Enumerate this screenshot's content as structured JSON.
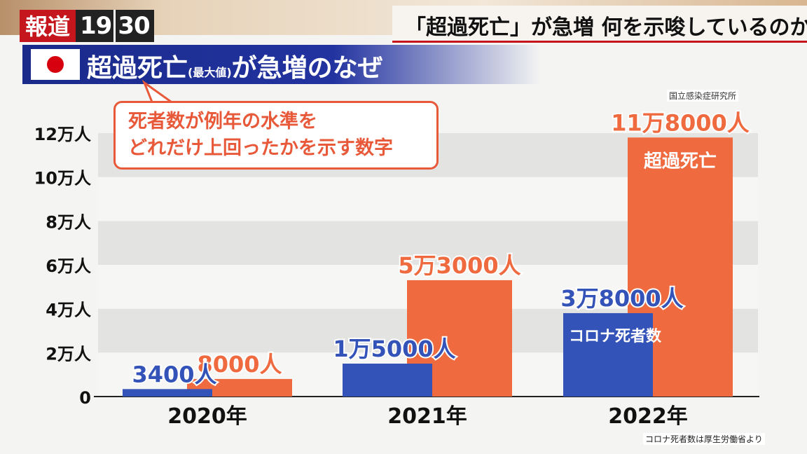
{
  "header": {
    "logo_text": "報道",
    "logo_num_a": "19",
    "logo_num_b": "30",
    "headline": "「超過死亡」が急増  何を示唆しているのか"
  },
  "title": {
    "main": "超過死亡",
    "small": "(最大値)",
    "rest": "が急増のなぜ"
  },
  "callout": {
    "line1": "死者数が例年の水準を",
    "line2": "どれだけ上回ったかを示す数字"
  },
  "source_top": "国立感染症研究所",
  "source_bottom": "コロナ死者数は厚生労働省より",
  "colors": {
    "excess": "#ef6a3e",
    "covid": "#3353b8",
    "accent_red": "#c4161c",
    "title_blue": "#1a2a8a"
  },
  "chart_data": {
    "type": "bar",
    "categories": [
      "2020年",
      "2021年",
      "2022年"
    ],
    "y_ticks": [
      {
        "value": 0,
        "label": "0"
      },
      {
        "value": 20000,
        "label": "2万人"
      },
      {
        "value": 40000,
        "label": "4万人"
      },
      {
        "value": 60000,
        "label": "6万人"
      },
      {
        "value": 80000,
        "label": "8万人"
      },
      {
        "value": 100000,
        "label": "10万人"
      },
      {
        "value": 120000,
        "label": "12万人"
      }
    ],
    "ylim": [
      0,
      120000
    ],
    "series": [
      {
        "name": "コロナ死者数",
        "color": "#3353b8",
        "values": [
          3400,
          15000,
          38000
        ],
        "labels": [
          "3400人",
          "1万5000人",
          "3万8000人"
        ]
      },
      {
        "name": "超過死亡",
        "color": "#ef6a3e",
        "values": [
          8000,
          53000,
          118000
        ],
        "labels": [
          "8000人",
          "5万3000人",
          "11万8000人"
        ]
      }
    ],
    "grid": "striped"
  }
}
